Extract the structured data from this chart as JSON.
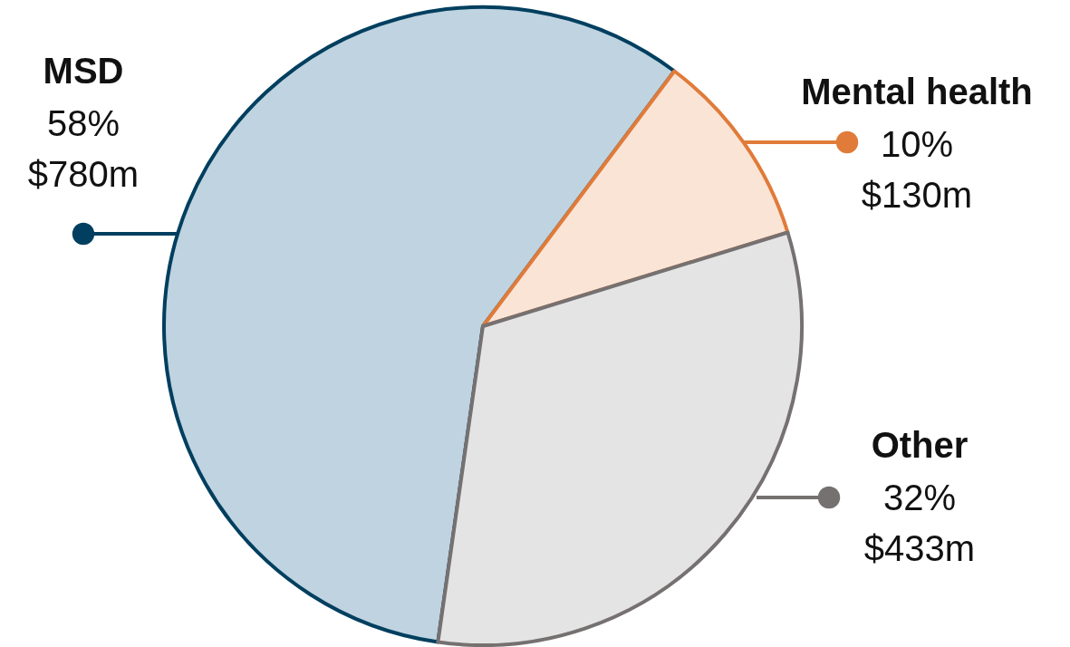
{
  "chart_data": {
    "type": "pie",
    "categories": [
      "MSD",
      "Mental health",
      "Other"
    ],
    "values": [
      58,
      10,
      32
    ],
    "value_labels": [
      "58%\n$780m",
      "10%\n$130m",
      "32%\n$433m"
    ],
    "colors": [
      "#bfd3e0",
      "#fae4d6",
      "#e4e4e4"
    ]
  }
}
